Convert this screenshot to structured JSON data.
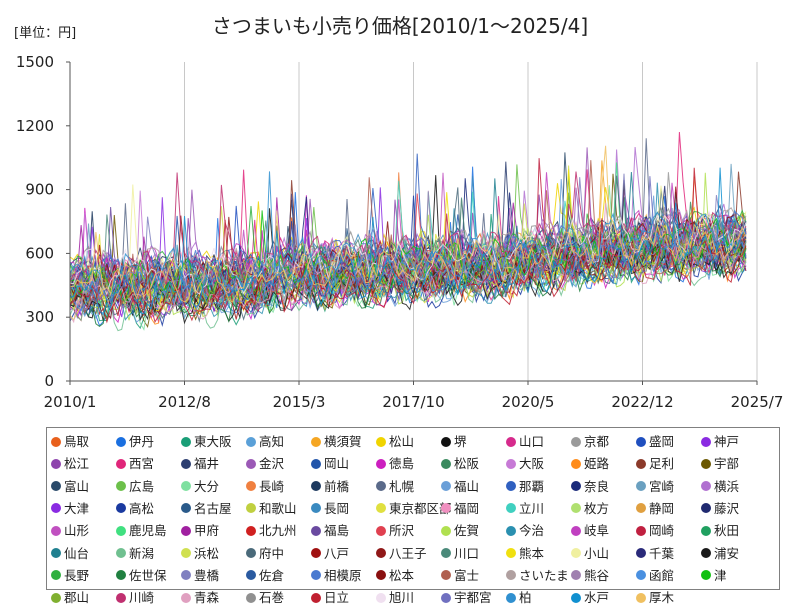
{
  "chart_data": {
    "type": "line",
    "title": "さつまいも小売り価格[2010/1～2025/4]",
    "unit_label": "[単位：円]",
    "x_ticks": [
      "2010/1",
      "2012/8",
      "2015/3",
      "2017/10",
      "2020/5",
      "2022/12",
      "2025/7"
    ],
    "y_ticks": [
      0,
      300,
      600,
      900,
      1200,
      1500
    ],
    "ylim": [
      0,
      1500
    ],
    "xlim": [
      "2010/1",
      "2025/7"
    ],
    "grid": "vertical",
    "legend_position": "bottom",
    "series": [
      {
        "name": "鳥取",
        "color": "#e8601c"
      },
      {
        "name": "伊丹",
        "color": "#1a6fe0"
      },
      {
        "name": "東大阪",
        "color": "#1a9e77"
      },
      {
        "name": "高知",
        "color": "#5aa0d8"
      },
      {
        "name": "横須賀",
        "color": "#f5a623"
      },
      {
        "name": "松山",
        "color": "#f0d400"
      },
      {
        "name": "堺",
        "color": "#111111"
      },
      {
        "name": "山口",
        "color": "#d62a8c"
      },
      {
        "name": "京都",
        "color": "#9a9a9a"
      },
      {
        "name": "盛岡",
        "color": "#1f4fbf"
      },
      {
        "name": "神戸",
        "color": "#8a2be2"
      },
      {
        "name": "松江",
        "color": "#8e44ad"
      },
      {
        "name": "西宮",
        "color": "#e0267a"
      },
      {
        "name": "福井",
        "color": "#2c3e70"
      },
      {
        "name": "金沢",
        "color": "#9b59b6"
      },
      {
        "name": "岡山",
        "color": "#2255aa"
      },
      {
        "name": "徳島",
        "color": "#cc1fbf"
      },
      {
        "name": "松阪",
        "color": "#3a8a5e"
      },
      {
        "name": "大阪",
        "color": "#c77ad6"
      },
      {
        "name": "姫路",
        "color": "#ff8c1a"
      },
      {
        "name": "足利",
        "color": "#8b3a2a"
      },
      {
        "name": "宇部",
        "color": "#6b5800"
      },
      {
        "name": "富山",
        "color": "#2a4a6a"
      },
      {
        "name": "広島",
        "color": "#6cc04a"
      },
      {
        "name": "大分",
        "color": "#7fe0a0"
      },
      {
        "name": "長崎",
        "color": "#f08040"
      },
      {
        "name": "前橋",
        "color": "#1e3a5f"
      },
      {
        "name": "札幌",
        "color": "#5a6a8a"
      },
      {
        "name": "福山",
        "color": "#6a9fd8"
      },
      {
        "name": "那覇",
        "color": "#3060c0"
      },
      {
        "name": "奈良",
        "color": "#1a2a7a"
      },
      {
        "name": "宮崎",
        "color": "#6aa0c0"
      },
      {
        "name": "横浜",
        "color": "#b070d0"
      },
      {
        "name": "大津",
        "color": "#8a2be2"
      },
      {
        "name": "高松",
        "color": "#1a3aa0"
      },
      {
        "name": "名古屋",
        "color": "#2a5a8a"
      },
      {
        "name": "和歌山",
        "color": "#c0d040"
      },
      {
        "name": "長岡",
        "color": "#3a8ac0"
      },
      {
        "name": "東京都区部",
        "color": "#e0e040"
      },
      {
        "name": "福岡",
        "color": "#f090c0"
      },
      {
        "name": "立川",
        "color": "#40d0c0"
      },
      {
        "name": "枚方",
        "color": "#b0e070"
      },
      {
        "name": "静岡",
        "color": "#e0a040"
      },
      {
        "name": "藤沢",
        "color": "#202a70"
      },
      {
        "name": "山形",
        "color": "#c050c0"
      },
      {
        "name": "鹿児島",
        "color": "#40e080"
      },
      {
        "name": "甲府",
        "color": "#a020a0"
      },
      {
        "name": "北九州",
        "color": "#d02020"
      },
      {
        "name": "福島",
        "color": "#6a4aa0"
      },
      {
        "name": "所沢",
        "color": "#e04050"
      },
      {
        "name": "佐賀",
        "color": "#b0e050"
      },
      {
        "name": "今治",
        "color": "#2a90b0"
      },
      {
        "name": "岐阜",
        "color": "#c040c0"
      },
      {
        "name": "岡崎",
        "color": "#c02040"
      },
      {
        "name": "秋田",
        "color": "#20a060"
      },
      {
        "name": "仙台",
        "color": "#208090"
      },
      {
        "name": "新潟",
        "color": "#70c090"
      },
      {
        "name": "浜松",
        "color": "#d0e050"
      },
      {
        "name": "府中",
        "color": "#4a6a7a"
      },
      {
        "name": "八戸",
        "color": "#a01010"
      },
      {
        "name": "八王子",
        "color": "#901818"
      },
      {
        "name": "川口",
        "color": "#4a8a7a"
      },
      {
        "name": "熊本",
        "color": "#f0e010"
      },
      {
        "name": "小山",
        "color": "#f0f0a0"
      },
      {
        "name": "千葉",
        "color": "#2a2a7a"
      },
      {
        "name": "浦安",
        "color": "#1a1a1a"
      },
      {
        "name": "長野",
        "color": "#30b040"
      },
      {
        "name": "佐世保",
        "color": "#208040"
      },
      {
        "name": "豊橋",
        "color": "#8080c0"
      },
      {
        "name": "佐倉",
        "color": "#2a5aa0"
      },
      {
        "name": "相模原",
        "color": "#4a7ad0"
      },
      {
        "name": "松本",
        "color": "#8a1010"
      },
      {
        "name": "富士",
        "color": "#b06050"
      },
      {
        "name": "さいたま",
        "color": "#b0a0a0"
      },
      {
        "name": "熊谷",
        "color": "#a080b0"
      },
      {
        "name": "函館",
        "color": "#4a90e0"
      },
      {
        "name": "津",
        "color": "#10c010"
      },
      {
        "name": "郡山",
        "color": "#80b030"
      },
      {
        "name": "川崎",
        "color": "#c03070"
      },
      {
        "name": "青森",
        "color": "#e0a0c0"
      },
      {
        "name": "石巻",
        "color": "#909090"
      },
      {
        "name": "日立",
        "color": "#c02030"
      },
      {
        "name": "旭川",
        "color": "#f0e0f0"
      },
      {
        "name": "宇都宮",
        "color": "#7070c0"
      },
      {
        "name": "柏",
        "color": "#3090d0"
      },
      {
        "name": "水戸",
        "color": "#1090d0"
      },
      {
        "name": "厚木",
        "color": "#f0c060"
      }
    ]
  }
}
